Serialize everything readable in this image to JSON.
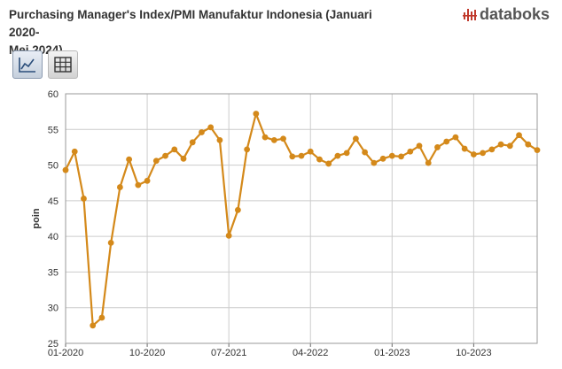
{
  "header": {
    "title_line1": "Purchasing Manager's Index/PMI Manufaktur Indonesia (Januari 2020-",
    "title_line2": "Mei 2024)",
    "brand": "databoks"
  },
  "toolbar": {
    "buttons": [
      {
        "name": "line-chart-view",
        "icon": "line-chart-icon",
        "active": true
      },
      {
        "name": "table-view",
        "icon": "table-grid-icon",
        "active": false
      }
    ]
  },
  "colors": {
    "line": "#D4891A",
    "grid": "#cccccc",
    "brand_red": "#C0392B"
  },
  "chart_data": {
    "type": "line",
    "title": "Purchasing Manager's Index/PMI Manufaktur Indonesia (Januari 2020-Mei 2024)",
    "xlabel": "",
    "ylabel": "poin",
    "ylim": [
      25,
      60
    ],
    "yticks": [
      25,
      30,
      35,
      40,
      45,
      50,
      55,
      60
    ],
    "xtick_labels": [
      "01-2020",
      "10-2020",
      "07-2021",
      "04-2022",
      "01-2023",
      "10-2023"
    ],
    "grid": true,
    "x": [
      "01-2020",
      "02-2020",
      "03-2020",
      "04-2020",
      "05-2020",
      "06-2020",
      "07-2020",
      "08-2020",
      "09-2020",
      "10-2020",
      "11-2020",
      "12-2020",
      "01-2021",
      "02-2021",
      "03-2021",
      "04-2021",
      "05-2021",
      "06-2021",
      "07-2021",
      "08-2021",
      "09-2021",
      "10-2021",
      "11-2021",
      "12-2021",
      "01-2022",
      "02-2022",
      "03-2022",
      "04-2022",
      "05-2022",
      "06-2022",
      "07-2022",
      "08-2022",
      "09-2022",
      "10-2022",
      "11-2022",
      "12-2022",
      "01-2023",
      "02-2023",
      "03-2023",
      "04-2023",
      "05-2023",
      "06-2023",
      "07-2023",
      "08-2023",
      "09-2023",
      "10-2023",
      "11-2023",
      "12-2023",
      "01-2024",
      "02-2024",
      "03-2024",
      "04-2024",
      "05-2024"
    ],
    "series": [
      {
        "values": [
          49.3,
          51.9,
          45.3,
          27.5,
          28.6,
          39.1,
          46.9,
          50.8,
          47.2,
          47.8,
          50.6,
          51.3,
          52.2,
          50.9,
          53.2,
          54.6,
          55.3,
          53.5,
          40.1,
          43.7,
          52.2,
          57.2,
          53.9,
          53.5,
          53.7,
          51.2,
          51.3,
          51.9,
          50.8,
          50.2,
          51.3,
          51.7,
          53.7,
          51.8,
          50.3,
          50.9,
          51.3,
          51.2,
          51.9,
          52.7,
          50.3,
          52.5,
          53.3,
          53.9,
          52.3,
          51.5,
          51.7,
          52.2,
          52.9,
          52.7,
          54.2,
          52.9,
          52.1
        ]
      }
    ]
  }
}
